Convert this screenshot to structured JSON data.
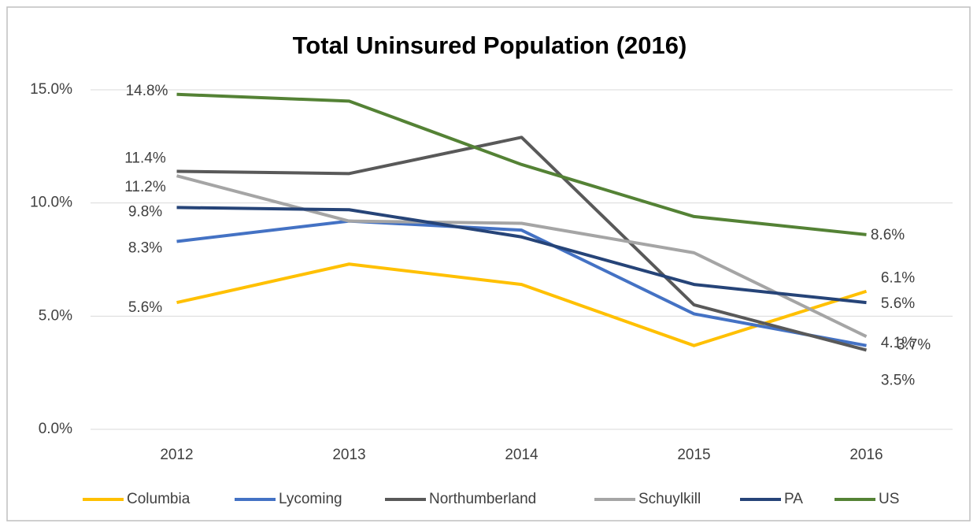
{
  "chart_data": {
    "type": "line",
    "title": "Total Uninsured Population (2016)",
    "categories": [
      "2012",
      "2013",
      "2014",
      "2015",
      "2016"
    ],
    "ylim": [
      0,
      15
    ],
    "yticks": [
      {
        "value": 0,
        "label": "0.0%"
      },
      {
        "value": 5,
        "label": "5.0%"
      },
      {
        "value": 10,
        "label": "10.0%"
      },
      {
        "value": 15,
        "label": "15.0%"
      }
    ],
    "grid": true,
    "legend": "bottom",
    "series": [
      {
        "name": "Columbia",
        "color": "#ffc000",
        "values": [
          5.6,
          7.3,
          6.4,
          3.7,
          6.1
        ],
        "value_labels": [
          "5.6%",
          null,
          null,
          null,
          "6.1%"
        ]
      },
      {
        "name": "Lycoming",
        "color": "#4472c4",
        "values": [
          8.3,
          9.2,
          8.8,
          5.1,
          3.7
        ],
        "value_labels": [
          "8.3%",
          null,
          null,
          null,
          "3.7%"
        ]
      },
      {
        "name": "Northumberland",
        "color": "#595959",
        "values": [
          11.4,
          11.3,
          12.9,
          5.5,
          3.5
        ],
        "value_labels": [
          "11.4%",
          null,
          null,
          null,
          "3.5%"
        ]
      },
      {
        "name": "Schuylkill",
        "color": "#a5a5a5",
        "values": [
          11.2,
          9.2,
          9.1,
          7.8,
          4.1
        ],
        "value_labels": [
          "11.2%",
          null,
          null,
          null,
          "4.1%"
        ]
      },
      {
        "name": "PA",
        "color": "#264478",
        "values": [
          9.8,
          9.7,
          8.5,
          6.4,
          5.6
        ],
        "value_labels": [
          "9.8%",
          null,
          null,
          null,
          "5.6%"
        ]
      },
      {
        "name": "US",
        "color": "#548235",
        "values": [
          14.8,
          14.5,
          11.7,
          9.4,
          8.6
        ],
        "value_labels": [
          "14.8%",
          null,
          null,
          null,
          "8.6%"
        ]
      }
    ]
  }
}
